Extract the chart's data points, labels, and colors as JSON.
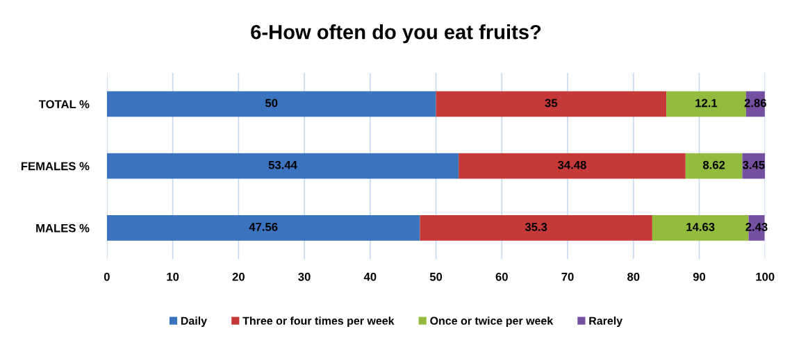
{
  "chart_data": {
    "type": "bar",
    "orientation": "horizontal",
    "stacked": true,
    "title": "6-How often do you eat fruits?",
    "categories": [
      "TOTAL %",
      "FEMALES %",
      "MALES %"
    ],
    "series": [
      {
        "name": "Daily",
        "color": "#3b73bf",
        "values": [
          50,
          53.44,
          47.56
        ]
      },
      {
        "name": "Three or four times per week",
        "color": "#c53a38",
        "values": [
          35,
          34.48,
          35.3
        ]
      },
      {
        "name": "Once or twice per week",
        "color": "#93bc3f",
        "values": [
          12.1,
          8.62,
          14.63
        ]
      },
      {
        "name": "Rarely",
        "color": "#7650a0",
        "values": [
          2.86,
          3.45,
          2.43
        ]
      }
    ],
    "xlim": [
      0,
      100
    ],
    "xticks": [
      0,
      10,
      20,
      30,
      40,
      50,
      60,
      70,
      80,
      90,
      100
    ],
    "grid": "x",
    "legend": "bottom",
    "data_labels": true
  }
}
